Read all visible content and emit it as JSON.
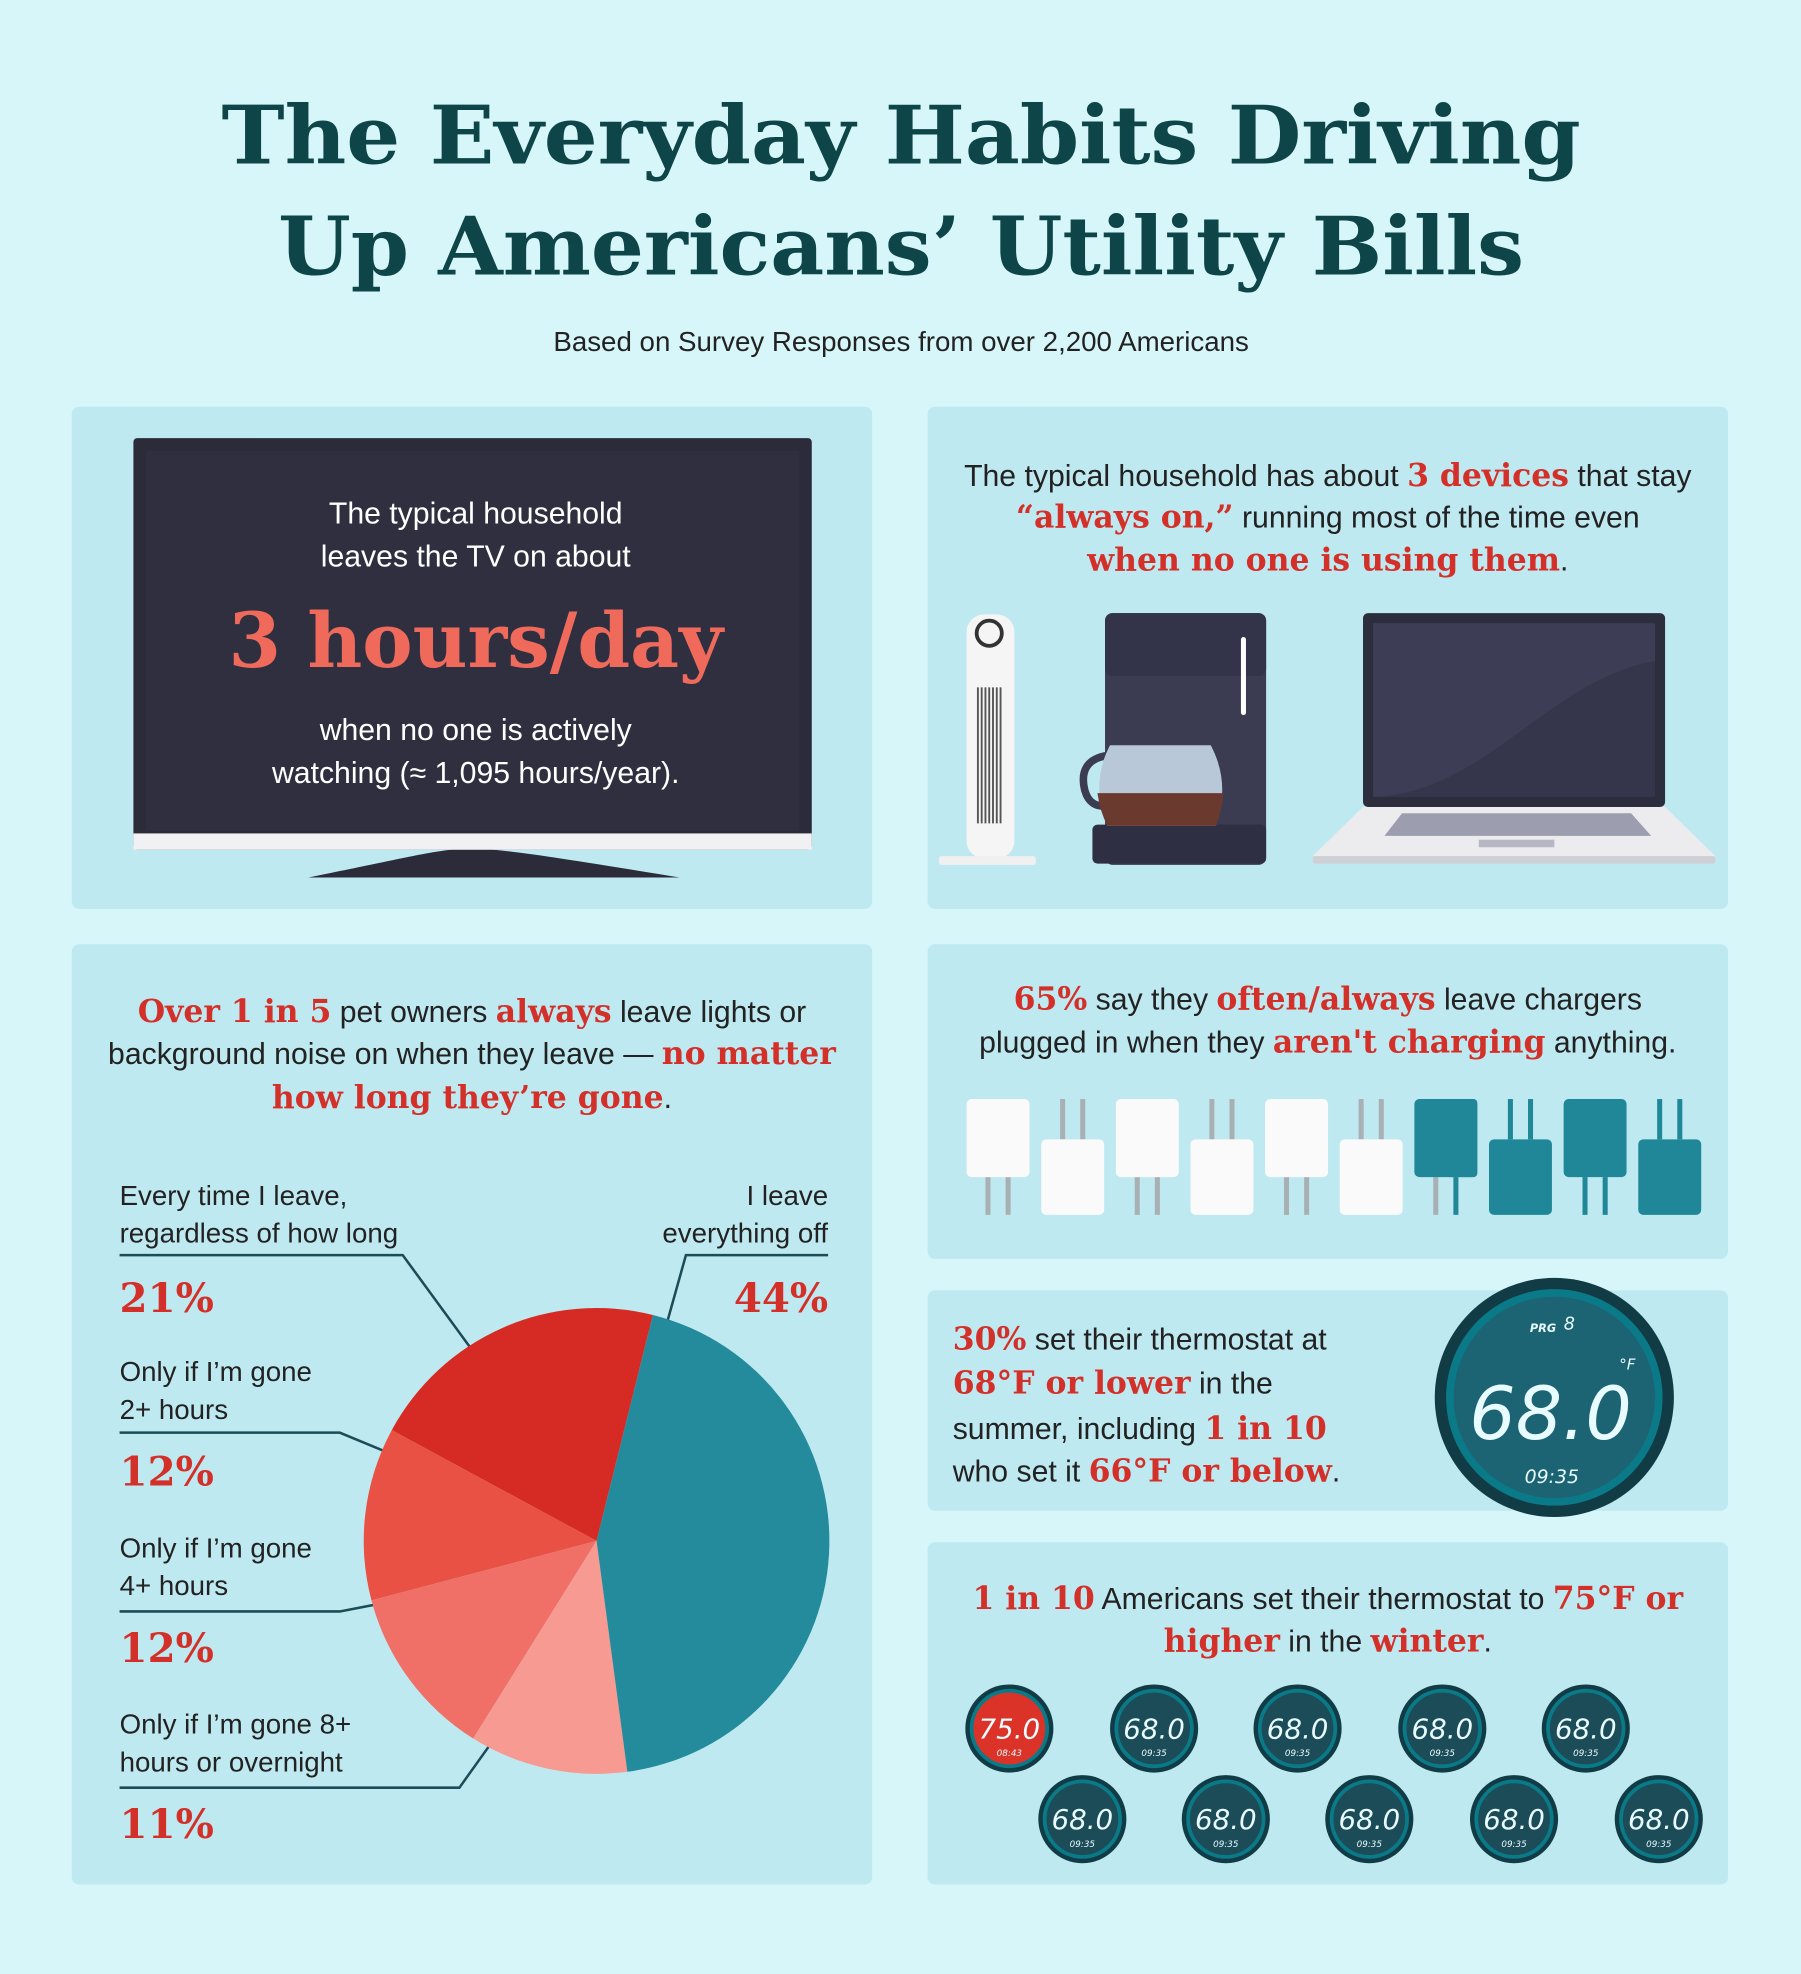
{
  "title": [
    "The Everyday Habits Driving",
    "Up Americans’ Utility Bills"
  ],
  "subtitle": "Based on Survey Responses from over 2,200 Americans",
  "tv_panel": {
    "intro": [
      "The typical household",
      "leaves the TV on about"
    ],
    "stat": "3 hours/day",
    "outro": [
      "when no one is actively",
      "watching (≈ 1,095 hours/year)."
    ]
  },
  "devices_panel": {
    "lines": [
      [
        {
          "text": "The typical household has about "
        },
        {
          "text": "3 devices",
          "highlight": true
        },
        {
          "text": " that stay"
        }
      ],
      [
        {
          "text": "“always on,”",
          "highlight": true
        },
        {
          "text": " running most of the time even"
        }
      ],
      [
        {
          "text": "when no one is using them",
          "highlight": true
        },
        {
          "text": "."
        }
      ]
    ]
  },
  "pet_panel": {
    "lines": [
      [
        {
          "text": "Over 1 in 5",
          "highlight": true
        },
        {
          "text": " pet owners "
        },
        {
          "text": "always",
          "highlight": true
        },
        {
          "text": " leave lights or"
        }
      ],
      [
        {
          "text": "background noise on when they leave — "
        },
        {
          "text": "no matter",
          "highlight": true
        }
      ],
      [
        {
          "text": "how long they’re gone",
          "highlight": true
        },
        {
          "text": "."
        }
      ]
    ]
  },
  "chart_data": {
    "type": "pie",
    "categories": [
      "Every time I leave, regardless of how long",
      "Only if I’m gone 2+ hours",
      "Only if I’m gone 4+ hours",
      "Only if I’m gone 8+ hours or overnight",
      "I leave everything off"
    ],
    "values": [
      21,
      12,
      12,
      11,
      44
    ],
    "value_labels": [
      "21%",
      "12%",
      "12%",
      "11%",
      "44%"
    ],
    "colors": [
      "#d62b24",
      "#e85144",
      "#f07068",
      "#f79a92",
      "#238b9c"
    ]
  },
  "chargers_panel": {
    "lines": [
      [
        {
          "text": "65%",
          "highlight": true
        },
        {
          "text": " say they "
        },
        {
          "text": "often/always",
          "highlight": true
        },
        {
          "text": " leave chargers"
        }
      ],
      [
        {
          "text": "plugged in when they "
        },
        {
          "text": "aren't charging",
          "highlight": true
        },
        {
          "text": " anything."
        }
      ]
    ]
  },
  "summer_panel": {
    "lines": [
      [
        {
          "text": "30%",
          "highlight": true
        },
        {
          "text": " set their thermostat at"
        }
      ],
      [
        {
          "text": "68°F or lower",
          "highlight": true
        },
        {
          "text": " in the"
        }
      ],
      [
        {
          "text": "summer, including "
        },
        {
          "text": "1 in 10",
          "highlight": true
        }
      ],
      [
        {
          "text": "who set it "
        },
        {
          "text": "66°F or below",
          "highlight": true
        },
        {
          "text": "."
        }
      ]
    ],
    "display": {
      "mode": "PRG",
      "program": "8",
      "temp": "68.0",
      "unit": "°F",
      "time": "09:35"
    }
  },
  "winter_panel": {
    "lines": [
      [
        {
          "text": "1 in 10",
          "highlight": true
        },
        {
          "text": " Americans set their thermostat to "
        },
        {
          "text": "75°F or",
          "highlight": true
        }
      ],
      [
        {
          "text": "higher",
          "highlight": true
        },
        {
          "text": " in the "
        },
        {
          "text": "winter",
          "highlight": true
        },
        {
          "text": "."
        }
      ]
    ],
    "displays": [
      {
        "temp": "75.0",
        "time": "08:43",
        "color": "#dc3328"
      },
      {
        "temp": "68.0",
        "time": "09:35",
        "color": "#1b4c57"
      },
      {
        "temp": "68.0",
        "time": "09:35",
        "color": "#1b4c57"
      },
      {
        "temp": "68.0",
        "time": "09:35",
        "color": "#1b4c57"
      },
      {
        "temp": "68.0",
        "time": "09:35",
        "color": "#1b4c57"
      },
      {
        "temp": "68.0",
        "time": "09:35",
        "color": "#1b4c57"
      },
      {
        "temp": "68.0",
        "time": "09:35",
        "color": "#1b4c57"
      },
      {
        "temp": "68.0",
        "time": "09:35",
        "color": "#1b4c57"
      },
      {
        "temp": "68.0",
        "time": "09:35",
        "color": "#1b4c57"
      },
      {
        "temp": "68.0",
        "time": "09:35",
        "color": "#1b4c57"
      }
    ]
  }
}
